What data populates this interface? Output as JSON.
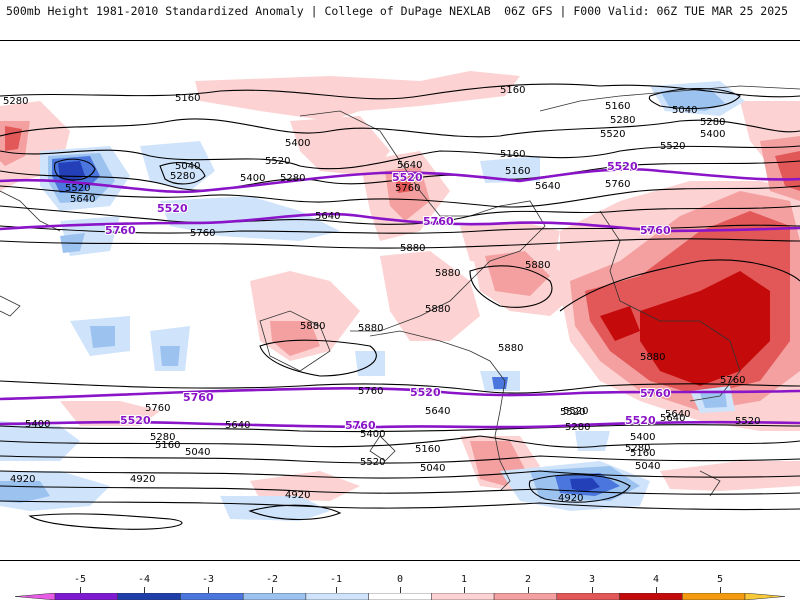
{
  "header": {
    "left": "500mb Height 1981-2010 Standardized Anomaly | College of DuPage NEXLAB",
    "right": "06Z GFS | F000 Valid: 06Z TUE MAR 25 2025"
  },
  "colors": {
    "purple_contour": "#8a14c8",
    "black_contour": "#000000",
    "pos1": "#fcd2d2",
    "pos2": "#f4a0a0",
    "pos3": "#e25858",
    "pos4": "#c40a0a",
    "neg1": "#cfe3fb",
    "neg2": "#9cc2f0",
    "neg3": "#4a76de",
    "neg4": "#2440b8"
  },
  "colorbar": {
    "ticks": [
      "-5",
      "-4",
      "-3",
      "-2",
      "-1",
      "0",
      "1",
      "2",
      "3",
      "4",
      "5"
    ],
    "segments": [
      "#e85ce8",
      "#7e1bd0",
      "#1e3eaa",
      "#4a76de",
      "#9cc2f0",
      "#cfe3fb",
      "#ffffff",
      "#fcd2d2",
      "#f4a0a0",
      "#e25858",
      "#c40a0a",
      "#f49a10",
      "#f8c838"
    ]
  },
  "contour_labels": {
    "black": [
      {
        "text": "5280"
      },
      {
        "text": "5160"
      },
      {
        "text": "5040"
      },
      {
        "text": "5280"
      },
      {
        "text": "5400"
      },
      {
        "text": "5520"
      },
      {
        "text": "5520"
      },
      {
        "text": "5640"
      },
      {
        "text": "5280"
      },
      {
        "text": "5400"
      },
      {
        "text": "5640"
      },
      {
        "text": "5760"
      },
      {
        "text": "5160"
      },
      {
        "text": "5160"
      },
      {
        "text": "5280"
      },
      {
        "text": "5520"
      },
      {
        "text": "5760"
      },
      {
        "text": "5640"
      },
      {
        "text": "5160"
      },
      {
        "text": "5160"
      },
      {
        "text": "5040"
      },
      {
        "text": "5280"
      },
      {
        "text": "5400"
      },
      {
        "text": "5520"
      },
      {
        "text": "5760"
      },
      {
        "text": "5640"
      },
      {
        "text": "5880"
      },
      {
        "text": "5880"
      },
      {
        "text": "5880"
      },
      {
        "text": "5880"
      },
      {
        "text": "5880"
      },
      {
        "text": "5880"
      },
      {
        "text": "5880"
      },
      {
        "text": "5880"
      },
      {
        "text": "5520"
      },
      {
        "text": "5400"
      },
      {
        "text": "5760"
      },
      {
        "text": "5640"
      },
      {
        "text": "5280"
      },
      {
        "text": "5160"
      },
      {
        "text": "5040"
      },
      {
        "text": "4920"
      },
      {
        "text": "4920"
      },
      {
        "text": "5760"
      },
      {
        "text": "5640"
      },
      {
        "text": "5520"
      },
      {
        "text": "5400"
      },
      {
        "text": "5280"
      },
      {
        "text": "5160"
      },
      {
        "text": "5040"
      },
      {
        "text": "4920"
      },
      {
        "text": "5760"
      },
      {
        "text": "5520"
      },
      {
        "text": "5280"
      },
      {
        "text": "5400"
      },
      {
        "text": "5160"
      },
      {
        "text": "5040"
      },
      {
        "text": "5640"
      },
      {
        "text": "5640"
      },
      {
        "text": "5520"
      },
      {
        "text": "4920"
      }
    ],
    "purple": [
      {
        "text": "5520"
      },
      {
        "text": "5760"
      },
      {
        "text": "5520"
      },
      {
        "text": "5760"
      },
      {
        "text": "5520"
      },
      {
        "text": "5760"
      },
      {
        "text": "5760"
      },
      {
        "text": "5520"
      },
      {
        "text": "5760"
      },
      {
        "text": "5520"
      },
      {
        "text": "5760"
      },
      {
        "text": "5520"
      }
    ]
  }
}
